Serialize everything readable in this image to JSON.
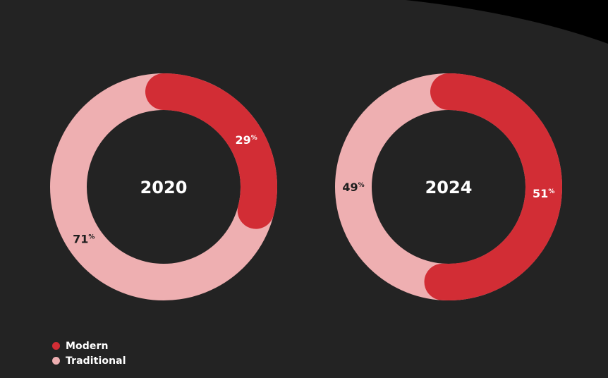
{
  "colors": {
    "background": "#232323",
    "corner": "#000000",
    "modern": "#d22d35",
    "traditional": "#eeafb1",
    "center_text": "#ffffff",
    "label_on_modern": "#ffffff",
    "label_on_traditional": "#1e1e1e"
  },
  "chart_data": [
    {
      "type": "pie",
      "variant": "donut",
      "center_label": "2020",
      "slices": [
        {
          "name": "Modern",
          "value": 29,
          "value_label": "29",
          "unit": "%"
        },
        {
          "name": "Traditional",
          "value": 71,
          "value_label": "71",
          "unit": "%"
        }
      ]
    },
    {
      "type": "pie",
      "variant": "donut",
      "center_label": "2024",
      "slices": [
        {
          "name": "Modern",
          "value": 51,
          "value_label": "51",
          "unit": "%"
        },
        {
          "name": "Traditional",
          "value": 49,
          "value_label": "49",
          "unit": "%"
        }
      ]
    }
  ],
  "legend": {
    "items": [
      {
        "label": "Modern",
        "color": "#d22d35"
      },
      {
        "label": "Traditional",
        "color": "#eeafb1"
      }
    ],
    "placement": "bottom-left"
  }
}
